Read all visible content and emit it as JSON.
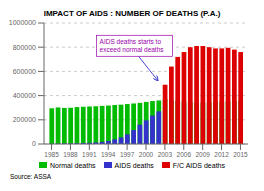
{
  "chart_data": {
    "type": "bar",
    "title": "IMPACT OF AIDS : NUMBER OF DEATHS (P.A.)",
    "x": [
      1985,
      1986,
      1987,
      1988,
      1989,
      1990,
      1991,
      1992,
      1993,
      1994,
      1995,
      1996,
      1997,
      1998,
      1999,
      2000,
      2001,
      2002,
      2003,
      2004,
      2005,
      2006,
      2007,
      2008,
      2009,
      2010,
      2011,
      2012,
      2013,
      2014,
      2015
    ],
    "series": [
      {
        "name": "Normal deaths",
        "color": "#00bb00",
        "values": [
          295000,
          302000,
          298000,
          300000,
          305000,
          308000,
          310000,
          312000,
          315000,
          318000,
          322000,
          325000,
          330000,
          335000,
          340000,
          348000,
          355000,
          360000,
          370000,
          360000,
          355000,
          350000,
          345000,
          340000,
          342000,
          345000,
          348000,
          350000,
          352000,
          354000,
          356000
        ]
      },
      {
        "name": "AIDS deaths",
        "color": "#3333cc",
        "values": [
          2000,
          3000,
          4000,
          5000,
          6000,
          8000,
          10000,
          13000,
          17000,
          25000,
          38000,
          55000,
          80000,
          115000,
          160000,
          195000,
          235000,
          270000,
          0,
          0,
          0,
          0,
          0,
          0,
          0,
          0,
          0,
          0,
          0,
          0,
          0
        ]
      },
      {
        "name": "F/C AIDS deaths",
        "color": "#dd0000",
        "values": [
          0,
          0,
          0,
          0,
          0,
          0,
          0,
          0,
          0,
          0,
          0,
          0,
          0,
          0,
          0,
          0,
          0,
          0,
          490000,
          640000,
          720000,
          760000,
          800000,
          810000,
          810000,
          800000,
          790000,
          790000,
          795000,
          780000,
          760000
        ]
      }
    ],
    "xlim": [
      1983.8,
      2016.2
    ],
    "xticks": [
      1985,
      1988,
      1991,
      1994,
      1997,
      2000,
      2003,
      2006,
      2009,
      2012,
      2015
    ],
    "ylim": [
      0,
      1000000
    ],
    "yticks": [
      0,
      200000,
      400000,
      600000,
      800000,
      1000000
    ],
    "grid": true,
    "annotations": [
      {
        "text": "AIDS deaths starts to\nexceed normal deaths",
        "x": 2002,
        "y": 510000
      },
      {
        "text": "Source: ASSA"
      }
    ]
  }
}
